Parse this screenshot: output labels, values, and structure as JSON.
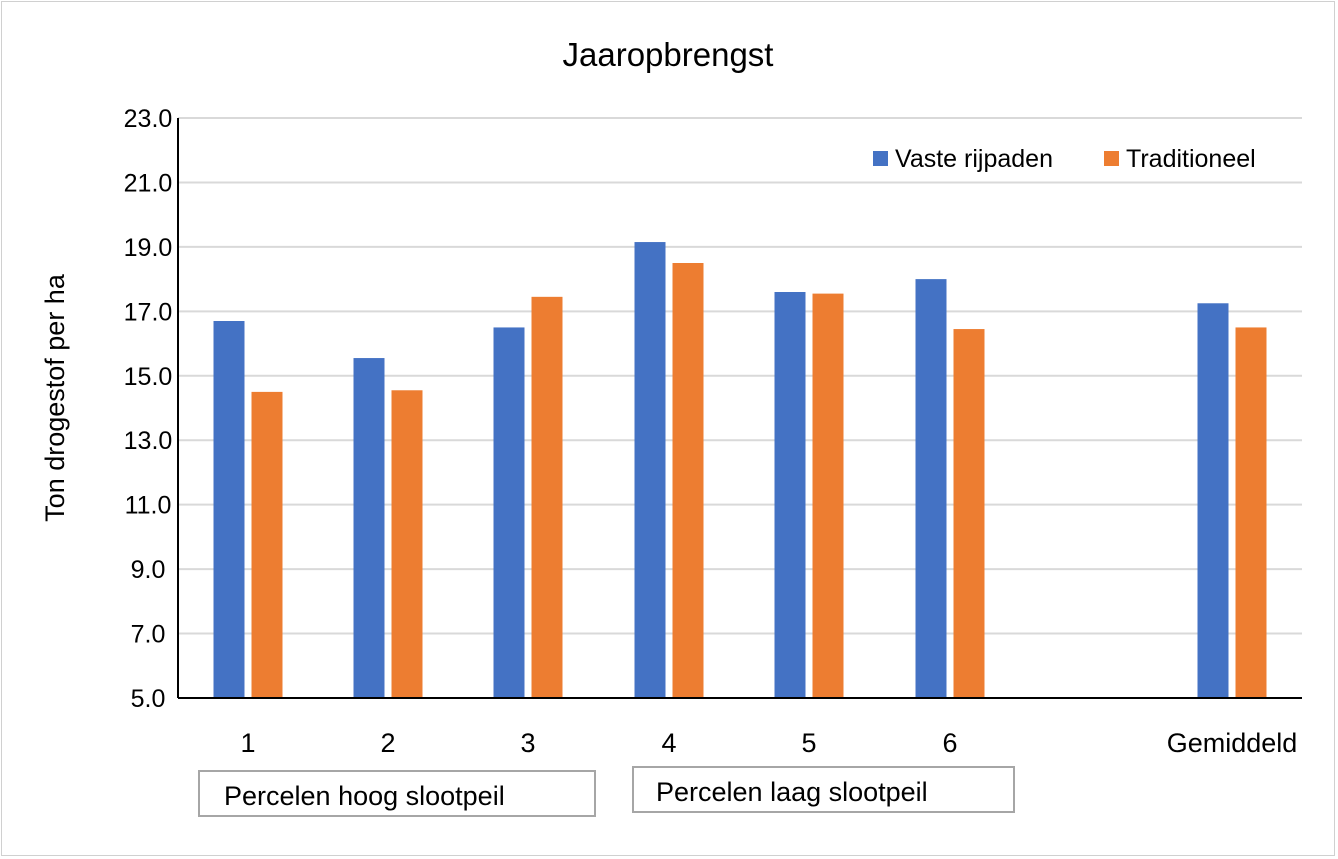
{
  "chart_data": {
    "type": "bar",
    "title": "Jaaropbrengst",
    "xlabel": "",
    "ylabel": "Ton drogestof  per ha",
    "ylim": [
      5.0,
      23.0
    ],
    "yticks": [
      "5.0",
      "7.0",
      "9.0",
      "11.0",
      "13.0",
      "15.0",
      "17.0",
      "19.0",
      "21.0",
      "23.0"
    ],
    "grid": true,
    "legend_position": "top-right",
    "categories": [
      "1",
      "2",
      "3",
      "4",
      "5",
      "6",
      "Gemiddeld"
    ],
    "series": [
      {
        "name": "Vaste rijpaden",
        "color": "#4472C4",
        "values": [
          16.7,
          15.55,
          16.5,
          19.15,
          17.6,
          18.0,
          17.25
        ]
      },
      {
        "name": "Traditioneel",
        "color": "#ED7D31",
        "values": [
          14.5,
          14.55,
          17.45,
          18.5,
          17.55,
          16.45,
          16.5
        ]
      }
    ],
    "annotations": [
      "Percelen hoog slootpeil",
      "Percelen laag slootpeil"
    ]
  }
}
